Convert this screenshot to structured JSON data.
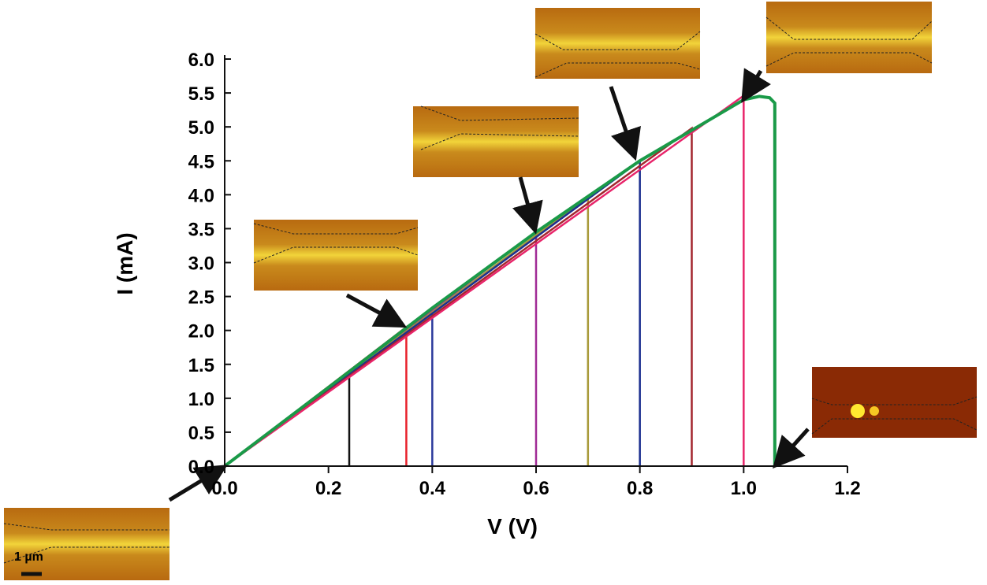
{
  "chart_data": {
    "type": "line",
    "x_label": "V (V)",
    "y_label": "I (mA)",
    "xlim": [
      0,
      1.2
    ],
    "ylim": [
      0,
      6.0
    ],
    "xticks": [
      {
        "value": 0,
        "label": "0.0"
      },
      0.2,
      0.4,
      0.6,
      0.8,
      {
        "value": 1,
        "label": "1.0"
      },
      1.2
    ],
    "yticks": [
      {
        "value": 0,
        "label": "0.0"
      },
      0.5,
      {
        "value": 1,
        "label": "1.0"
      },
      1.5,
      {
        "value": 2,
        "label": "2.0"
      },
      2.5,
      {
        "value": 3,
        "label": "3.0"
      },
      3.5,
      {
        "value": 4,
        "label": "4.0"
      },
      4.5,
      {
        "value": 5,
        "label": "5.0"
      },
      5.5,
      {
        "value": 6,
        "label": "6.0"
      }
    ],
    "annotations": [
      "1 µm"
    ],
    "series": [
      {
        "color": "#111111",
        "x": [
          0,
          0.24,
          0.24
        ],
        "values": [
          0,
          1.4,
          0
        ]
      },
      {
        "color": "#e8212b",
        "x": [
          0,
          0.35,
          0.35
        ],
        "values": [
          0,
          2.05,
          0
        ]
      },
      {
        "color": "#2b3a9c",
        "x": [
          0,
          0.4,
          0.4
        ],
        "values": [
          0,
          2.33,
          0
        ]
      },
      {
        "color": "#a02a95",
        "x": [
          0,
          0.6,
          0.6
        ],
        "values": [
          0,
          3.45,
          0
        ]
      },
      {
        "color": "#a89a3a",
        "x": [
          0,
          0.7,
          0.7
        ],
        "values": [
          0,
          3.97,
          0
        ]
      },
      {
        "color": "#1c2f8f",
        "x": [
          0,
          0.8,
          0.8
        ],
        "values": [
          0,
          4.5,
          0
        ]
      },
      {
        "color": "#a3262e",
        "x": [
          0,
          0.9,
          0.9
        ],
        "values": [
          0,
          4.98,
          0
        ]
      },
      {
        "color": "#e8246a",
        "x": [
          0,
          1.0,
          1.0
        ],
        "values": [
          0,
          5.46,
          0
        ]
      },
      {
        "color": "#1a9a48",
        "x": [
          0,
          0.2,
          0.4,
          0.6,
          0.8,
          1.0,
          1.03,
          1.05,
          1.06,
          1.06
        ],
        "values": [
          0,
          1.16,
          2.33,
          3.45,
          4.5,
          5.4,
          5.45,
          5.43,
          5.35,
          0
        ]
      }
    ]
  }
}
